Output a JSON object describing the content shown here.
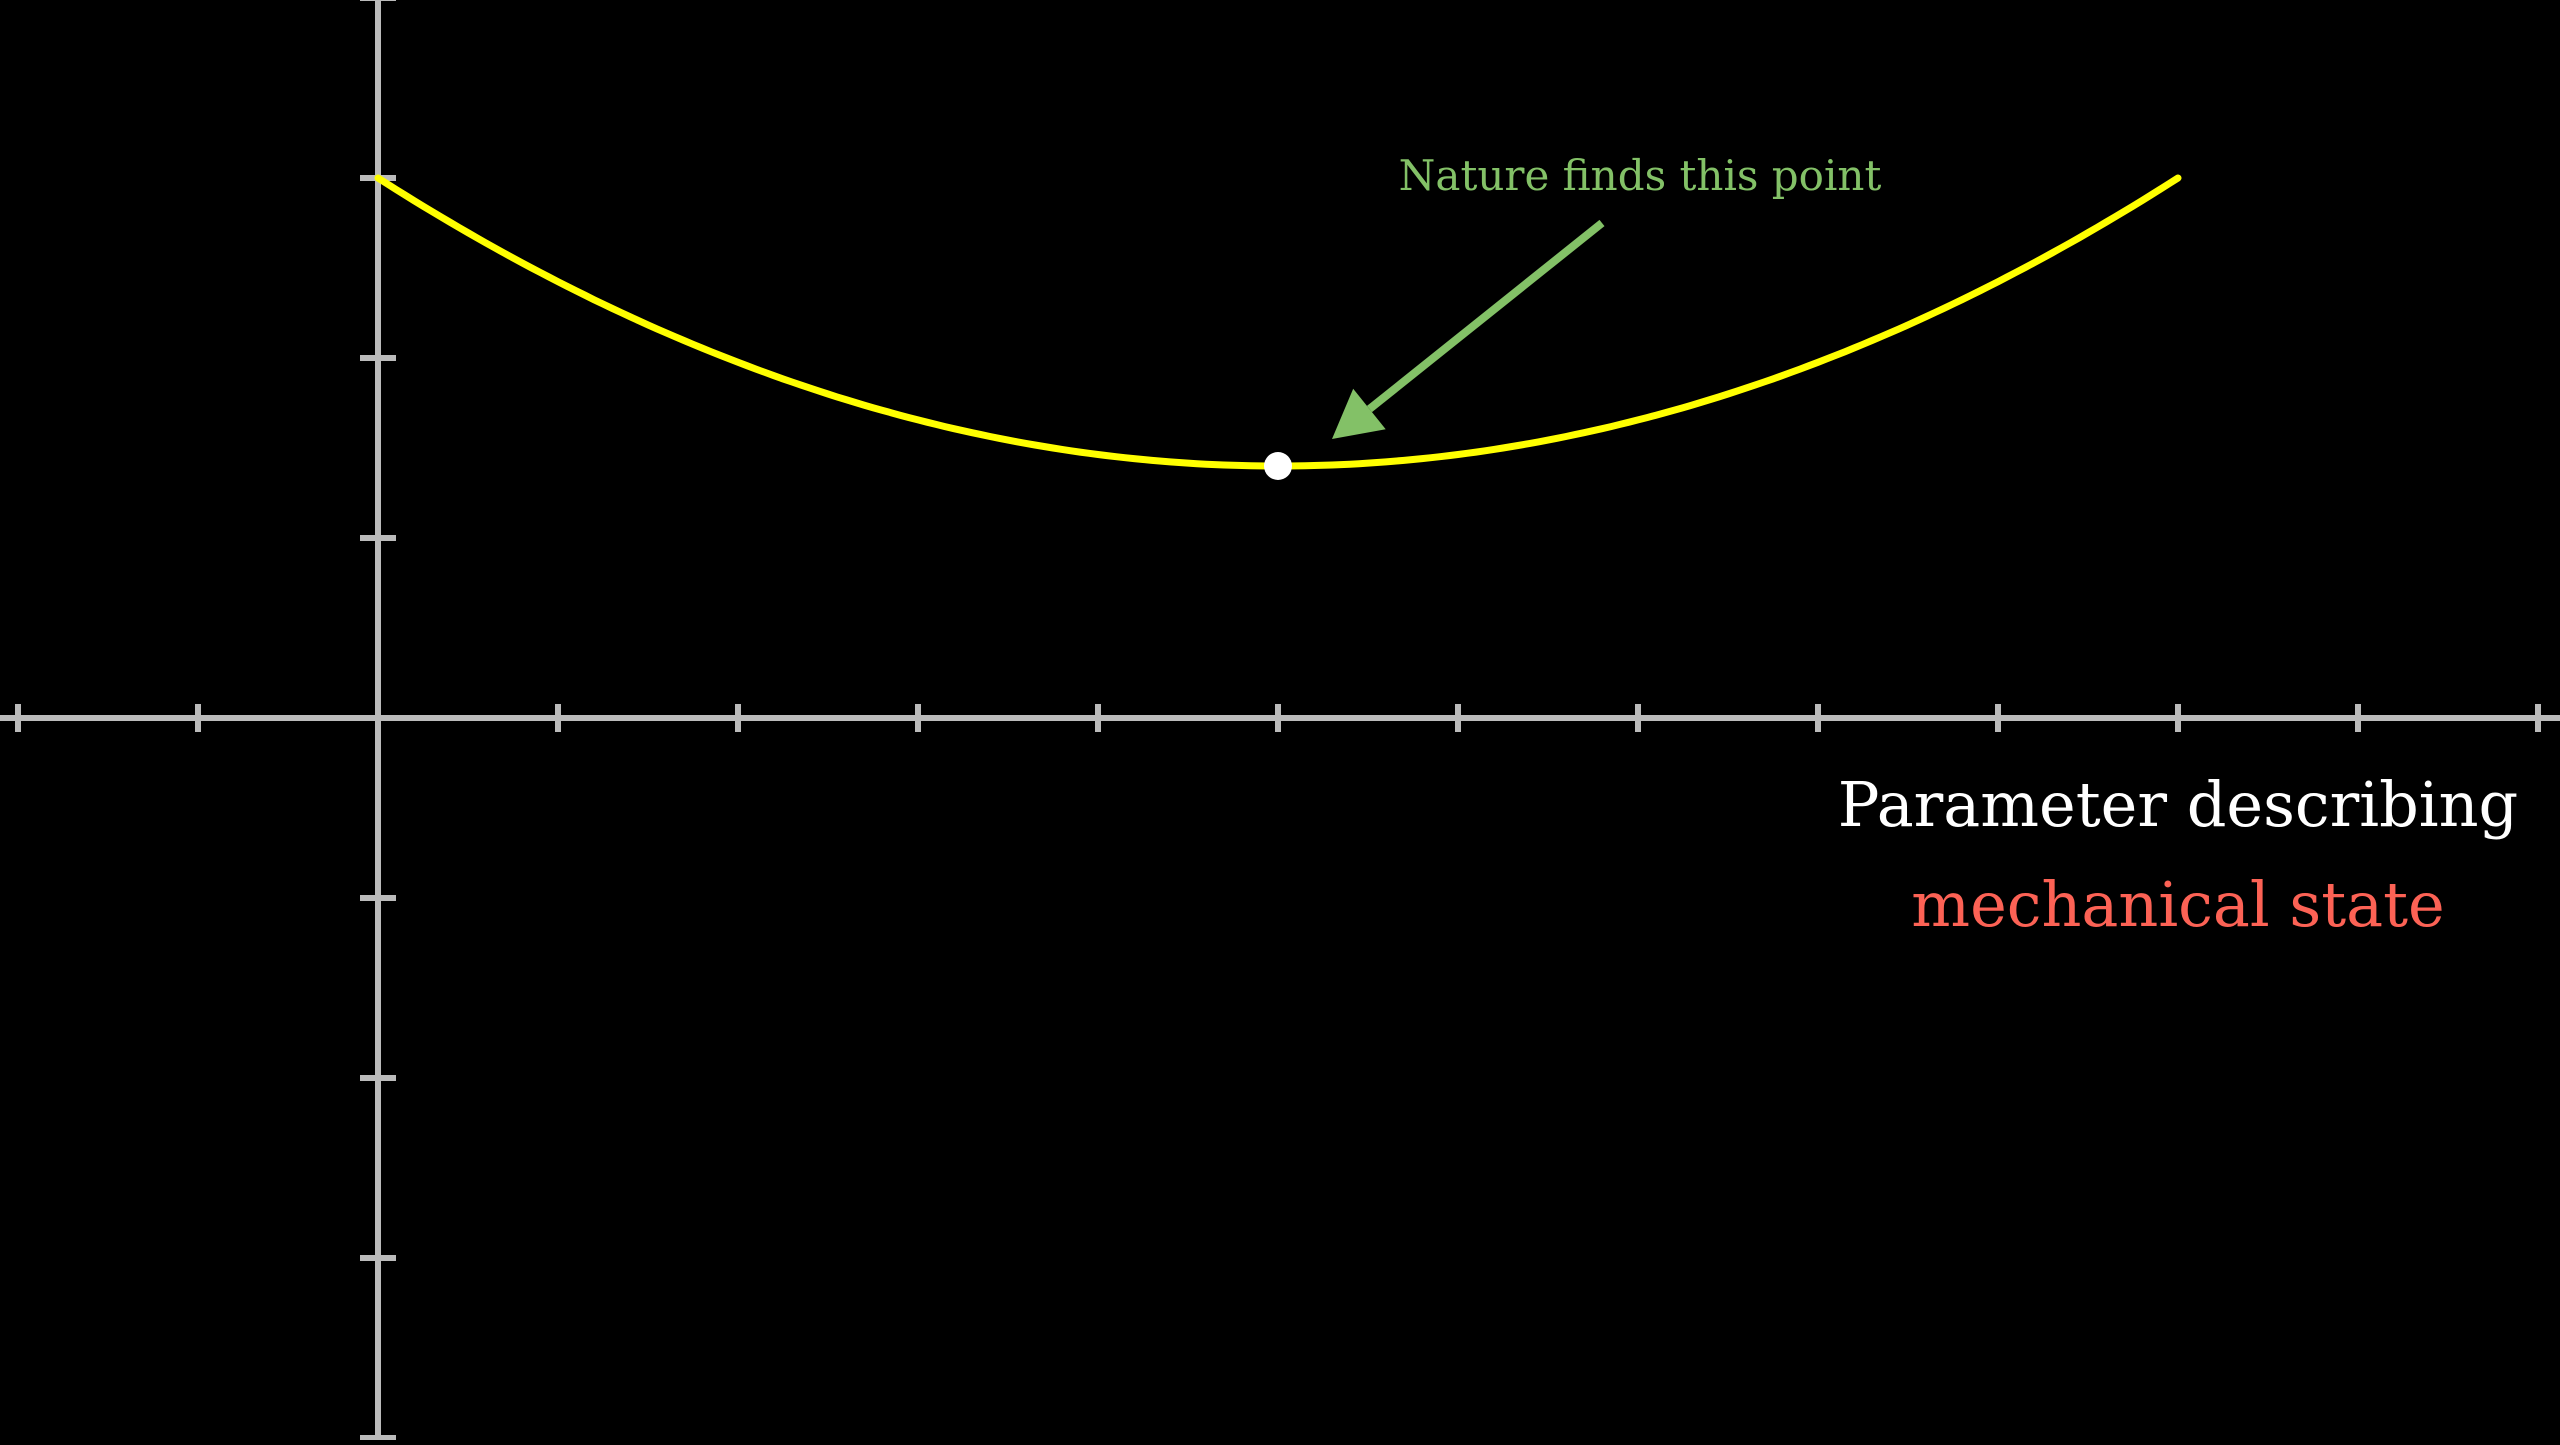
{
  "chart_data": {
    "type": "line",
    "title": "",
    "xlabel": "",
    "ylabel": "",
    "xlim": [
      -2,
      12
    ],
    "ylim": [
      -4,
      4
    ],
    "x_ticks": [
      -2,
      -1,
      0,
      1,
      2,
      3,
      4,
      5,
      6,
      7,
      8,
      9,
      10,
      11,
      12
    ],
    "y_ticks": [
      -4,
      -3,
      -2,
      -1,
      1,
      2,
      3,
      4
    ],
    "grid": false,
    "series": [
      {
        "curve": "parabola",
        "x": [
          0,
          1,
          2,
          3,
          4,
          5,
          6,
          7,
          8,
          9,
          10
        ],
        "values": [
          3.0,
          2.4,
          1.95,
          1.6,
          1.4,
          1.4,
          1.4,
          1.6,
          1.95,
          2.4,
          3.0
        ],
        "vertex": [
          5,
          1.4
        ],
        "x_range": [
          0,
          10
        ]
      }
    ],
    "highlight_point": {
      "x": 5,
      "y": 1.4
    },
    "annotation": {
      "text": "Nature finds this point",
      "arrow_from": [
        6.8,
        2.75
      ],
      "arrow_to": [
        5.3,
        1.55
      ]
    },
    "axis_caption": {
      "line1": "Parameter describing",
      "line2": "mechanical state"
    }
  },
  "colors": {
    "background": "#000000",
    "axes": "#bbbbbb",
    "curve": "#ffff00",
    "point": "#ffffff",
    "annotation": "#83c167",
    "caption_line1": "#ffffff",
    "caption_line2": "#fc6255"
  }
}
